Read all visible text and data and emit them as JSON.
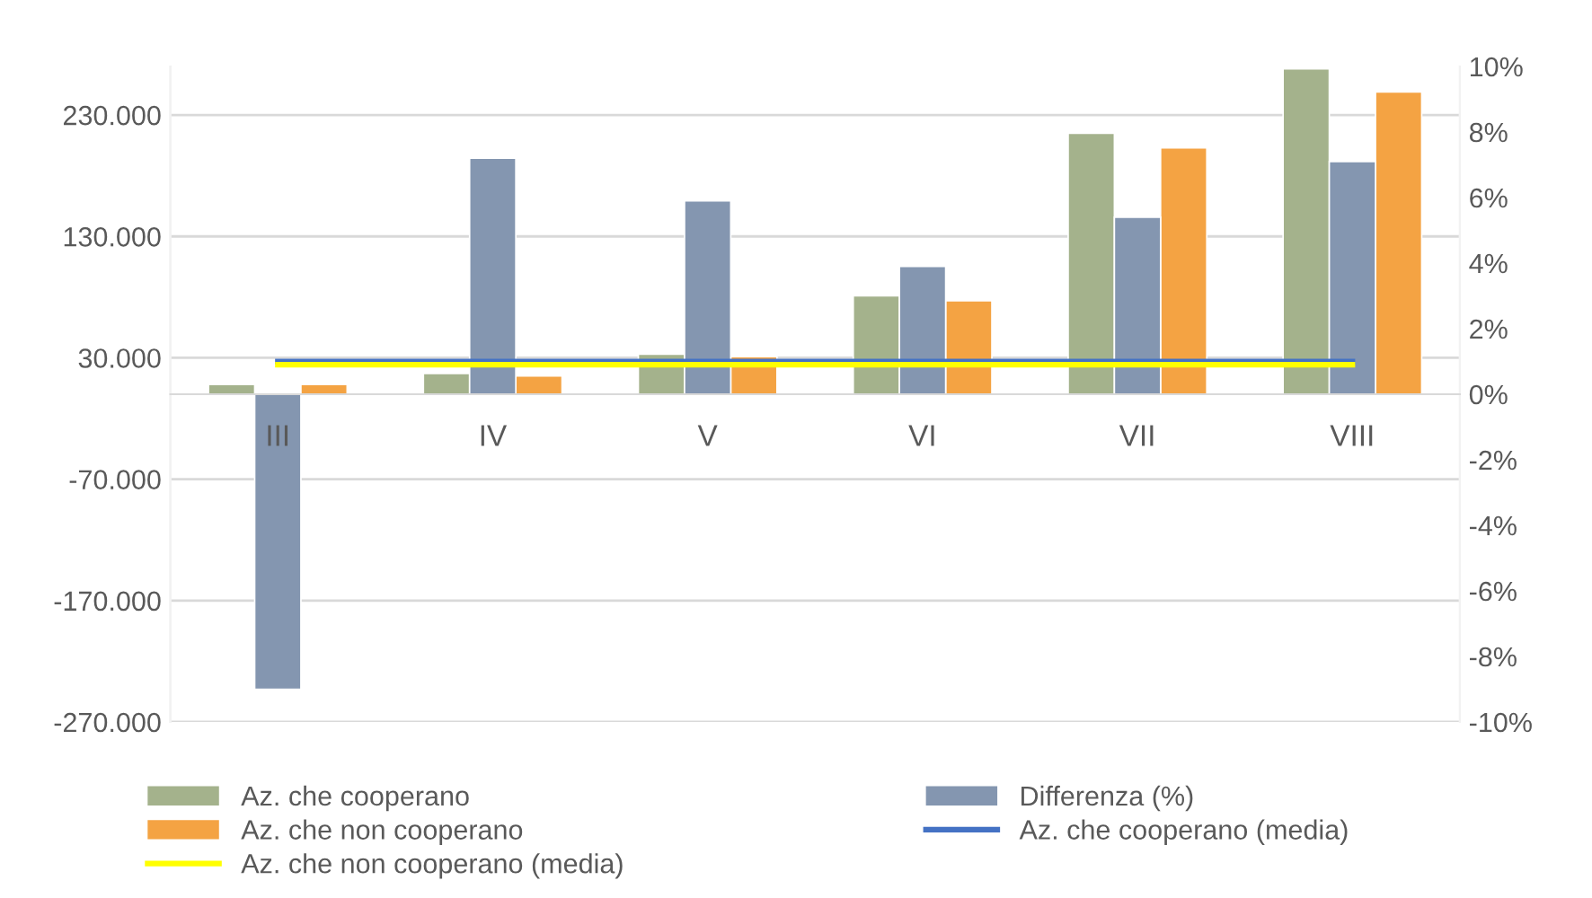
{
  "chart_data": {
    "type": "bar",
    "categories": [
      "III",
      "IV",
      "V",
      "VI",
      "VII",
      "VIII"
    ],
    "series": [
      {
        "name": "Az. che cooperano",
        "color": "#a4b28c",
        "values": [
          8000,
          17000,
          33000,
          81000,
          215000,
          268000
        ]
      },
      {
        "name": "Differenza (%)",
        "color": "#8496b0",
        "axis": "y2",
        "values": [
          -9.0,
          7.2,
          5.9,
          3.9,
          5.4,
          7.1
        ]
      },
      {
        "name": "Az. che non cooperano",
        "color": "#f4a343",
        "values": [
          8000,
          15000,
          31000,
          77000,
          203000,
          249000
        ]
      },
      {
        "name": "Az. che cooperano (media)",
        "type": "line",
        "color": "#4472c4",
        "axis": "y2",
        "values": [
          1.0,
          1.0,
          1.0,
          1.0,
          1.0,
          1.0
        ]
      },
      {
        "name": "Az. che non cooperano (media)",
        "type": "line",
        "color": "#ffff00",
        "axis": "y2",
        "values": [
          0.9,
          0.9,
          0.9,
          0.9,
          0.9,
          0.9
        ]
      }
    ],
    "ylim": [
      -270000,
      270000
    ],
    "yticks": [
      {
        "value": -270000,
        "label": "-270.000"
      },
      {
        "value": -170000,
        "label": "-170.000"
      },
      {
        "value": -70000,
        "label": "-70.000"
      },
      {
        "value": 30000,
        "label": "30.000"
      },
      {
        "value": 130000,
        "label": "130.000"
      },
      {
        "value": 230000,
        "label": "230.000"
      }
    ],
    "y2lim": [
      -10,
      10
    ],
    "y2ticks": [
      {
        "value": -10,
        "label": "-10%"
      },
      {
        "value": -8,
        "label": "-8%"
      },
      {
        "value": -6,
        "label": "-6%"
      },
      {
        "value": -4,
        "label": "-4%"
      },
      {
        "value": -2,
        "label": "-2%"
      },
      {
        "value": 0,
        "label": "0%"
      },
      {
        "value": 2,
        "label": "2%"
      },
      {
        "value": 4,
        "label": "4%"
      },
      {
        "value": 6,
        "label": "6%"
      },
      {
        "value": 8,
        "label": "8%"
      },
      {
        "value": 10,
        "label": "10%"
      }
    ],
    "grid": "y",
    "legend": "bottom"
  }
}
